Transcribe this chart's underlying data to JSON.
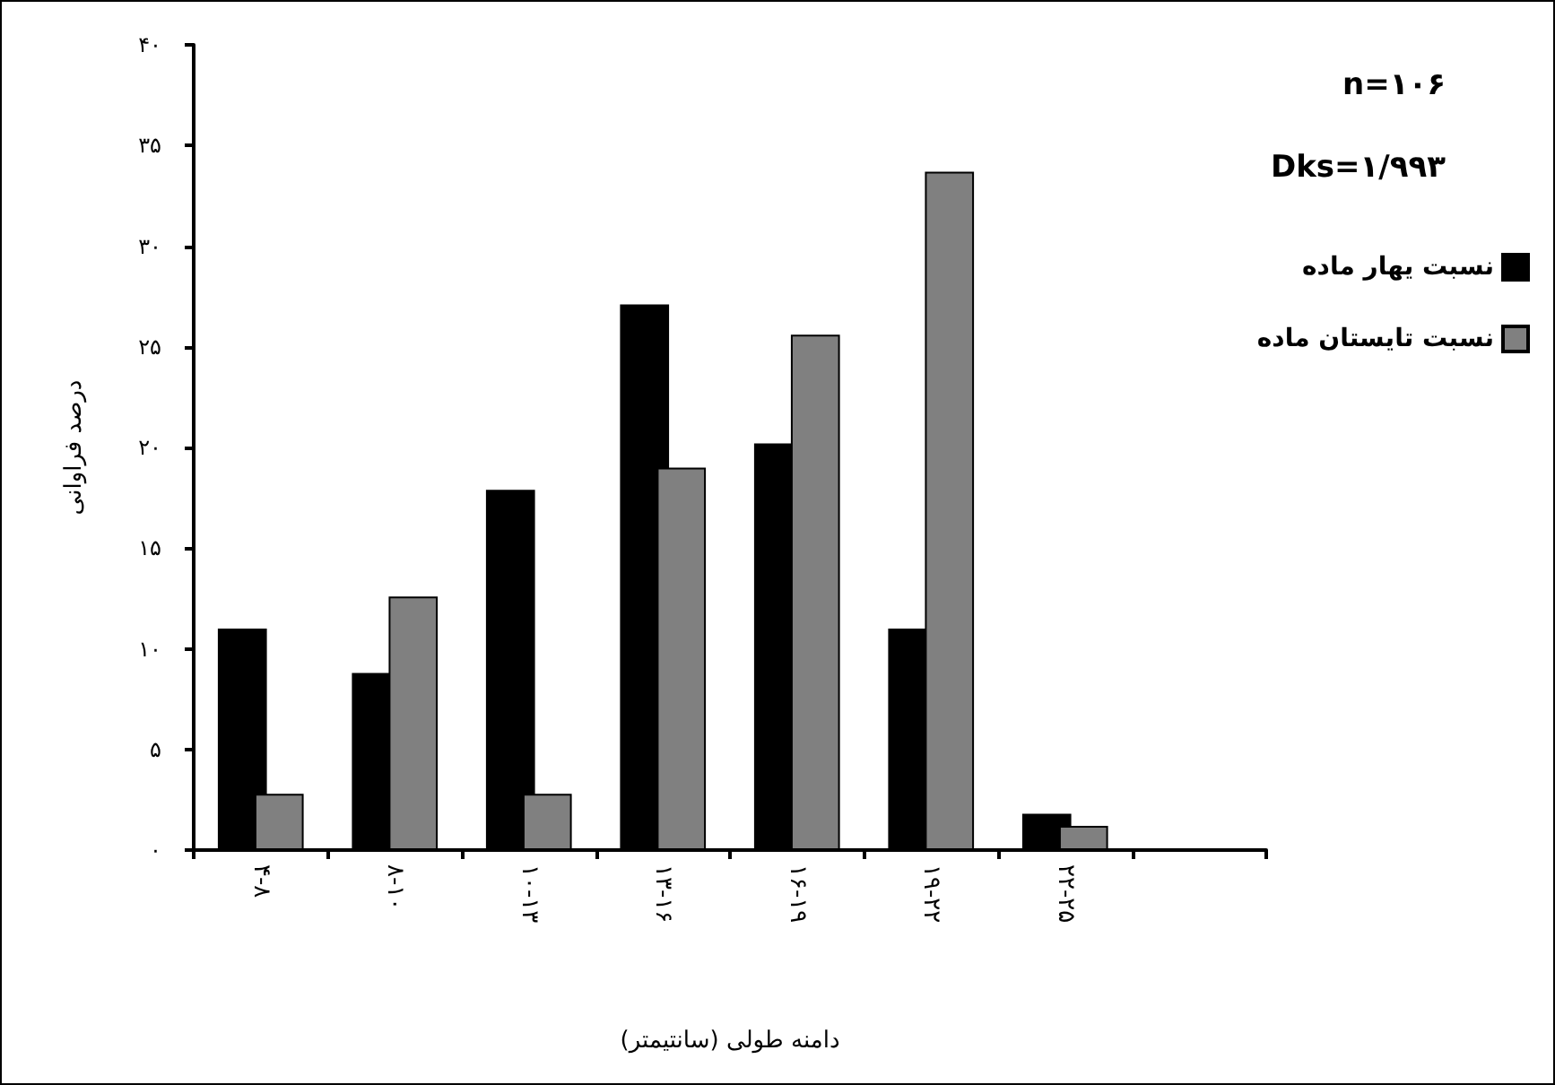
{
  "chart_data": {
    "type": "bar",
    "xlabel": "دامنه طولی (سانتیمتر)",
    "ylabel": "درصد فراوانی",
    "categories": [
      "۴-۸",
      "۸-۱۰",
      "۱۰-۱۳",
      "۱۳-۱۶",
      "۱۶-۱۹",
      "۱۹-۲۲",
      "۲۲-۲۵",
      null
    ],
    "series": [
      {
        "name": "نسبت یهار ماده",
        "color": "#000000",
        "values": [
          11.0,
          8.8,
          17.9,
          27.1,
          20.2,
          11.0,
          1.8,
          null
        ]
      },
      {
        "name": "نسبت تایستان ماده",
        "color": "#808080",
        "values": [
          2.8,
          12.6,
          2.8,
          19.0,
          25.6,
          33.7,
          1.2,
          null
        ]
      }
    ],
    "ylim": [
      0,
      40
    ],
    "yticks": [
      {
        "value": 0,
        "label": "۰"
      },
      {
        "value": 5,
        "label": "۵"
      },
      {
        "value": 10,
        "label": "۱۰"
      },
      {
        "value": 15,
        "label": "۱۵"
      },
      {
        "value": 20,
        "label": "۲۰"
      },
      {
        "value": 25,
        "label": "۲۵"
      },
      {
        "value": 30,
        "label": "۳۰"
      },
      {
        "value": 35,
        "label": "۳۵"
      },
      {
        "value": 40,
        "label": "۴۰"
      }
    ],
    "annotations": [
      "n=۱۰۶",
      "Dks=۱/۹۹۳"
    ],
    "legend": "top right",
    "grid": false
  }
}
